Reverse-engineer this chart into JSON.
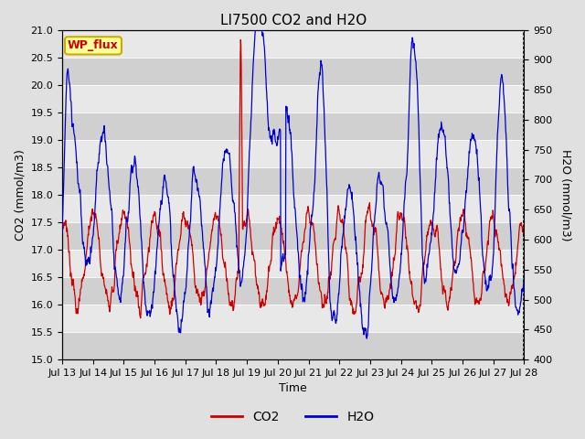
{
  "title": "LI7500 CO2 and H2O",
  "xlabel": "Time",
  "ylabel_left": "CO2 (mmol/m3)",
  "ylabel_right": "H2O (mmol/m3)",
  "site_label": "WP_flux",
  "co2_ylim": [
    15.0,
    21.0
  ],
  "h2o_ylim": [
    400,
    950
  ],
  "co2_yticks": [
    15.0,
    15.5,
    16.0,
    16.5,
    17.0,
    17.5,
    18.0,
    18.5,
    19.0,
    19.5,
    20.0,
    20.5,
    21.0
  ],
  "h2o_yticks": [
    400,
    450,
    500,
    550,
    600,
    650,
    700,
    750,
    800,
    850,
    900,
    950
  ],
  "xtick_labels": [
    "Jul 13",
    "Jul 14",
    "Jul 15",
    "Jul 16",
    "Jul 17",
    "Jul 18",
    "Jul 19",
    "Jul 20",
    "Jul 21",
    "Jul 22",
    "Jul 23",
    "Jul 24",
    "Jul 25",
    "Jul 26",
    "Jul 27",
    "Jul 28"
  ],
  "co2_color": "#cc0000",
  "h2o_color": "#0000cc",
  "legend_co2": "CO2",
  "legend_h2o": "H2O",
  "fig_bg_color": "#e0e0e0",
  "plot_bg_light": "#e8e8e8",
  "plot_bg_dark": "#d0d0d0",
  "site_label_bg": "#ffff99",
  "site_label_border": "#ccaa00",
  "site_label_color": "#cc0000",
  "title_fontsize": 11,
  "axis_label_fontsize": 9,
  "tick_fontsize": 8,
  "legend_fontsize": 10,
  "n_days": 15,
  "points_per_day": 96
}
